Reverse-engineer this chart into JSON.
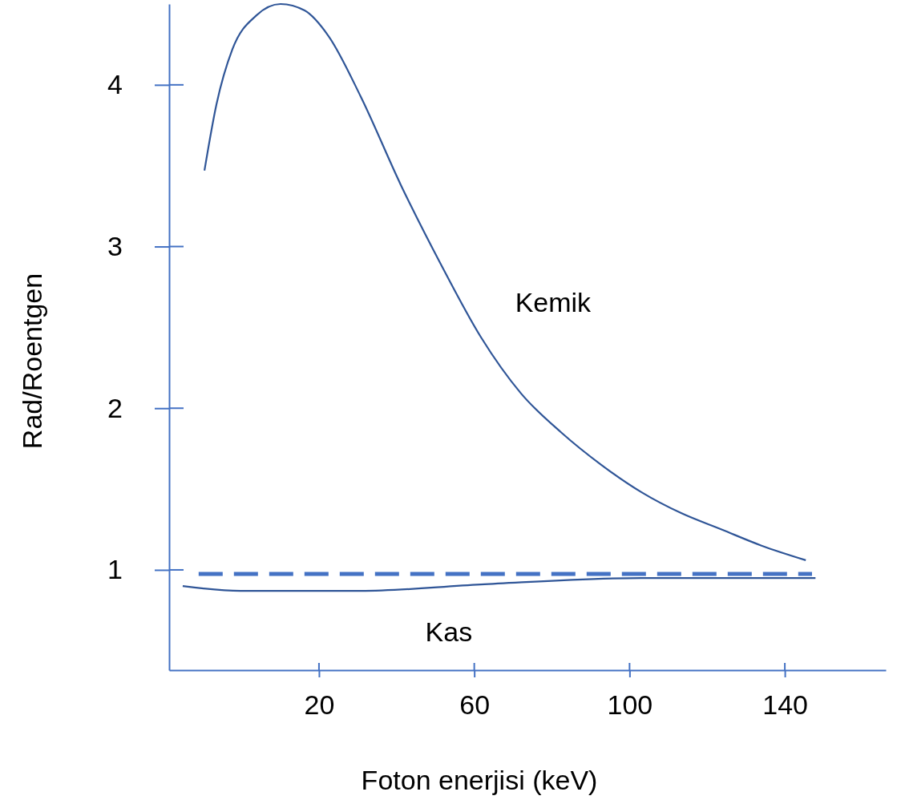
{
  "chart_data": {
    "type": "line",
    "xlabel": "Foton enerjisi (keV)",
    "ylabel": "Rad/Roentgen",
    "xlim": [
      -18.6,
      166
    ],
    "ylim": [
      0.38,
      4.5
    ],
    "xticks": [
      20,
      60,
      100,
      140
    ],
    "yticks": [
      1,
      2,
      3,
      4
    ],
    "grid": false,
    "marker": "none",
    "series": [
      {
        "name": "Kemik",
        "color": "#2f5597",
        "line_style": "solid",
        "x": [
          -9.5,
          -6.4,
          -2.3,
          3.9,
          10.1,
          16.3,
          22.5,
          30.7,
          41.1,
          51.4,
          61.7,
          72.1,
          82.4,
          92.7,
          103.1,
          113.4,
          123.7,
          134,
          145.4
        ],
        "values": [
          3.47,
          3.88,
          4.22,
          4.43,
          4.5,
          4.46,
          4.3,
          3.93,
          3.38,
          2.89,
          2.44,
          2.09,
          1.85,
          1.65,
          1.48,
          1.35,
          1.25,
          1.15,
          1.06
        ]
      },
      {
        "color": "#4472c4",
        "line_style": "dashed",
        "x": [
          -11,
          147
        ],
        "values": [
          0.975,
          0.975
        ]
      },
      {
        "name": "Kas",
        "color": "#2f5597",
        "line_style": "solid",
        "x": [
          -15.1,
          -0.2,
          14.2,
          30.7,
          61.7,
          103.1,
          147.9
        ],
        "values": [
          0.9,
          0.87,
          0.87,
          0.87,
          0.91,
          0.95,
          0.95
        ]
      }
    ]
  }
}
